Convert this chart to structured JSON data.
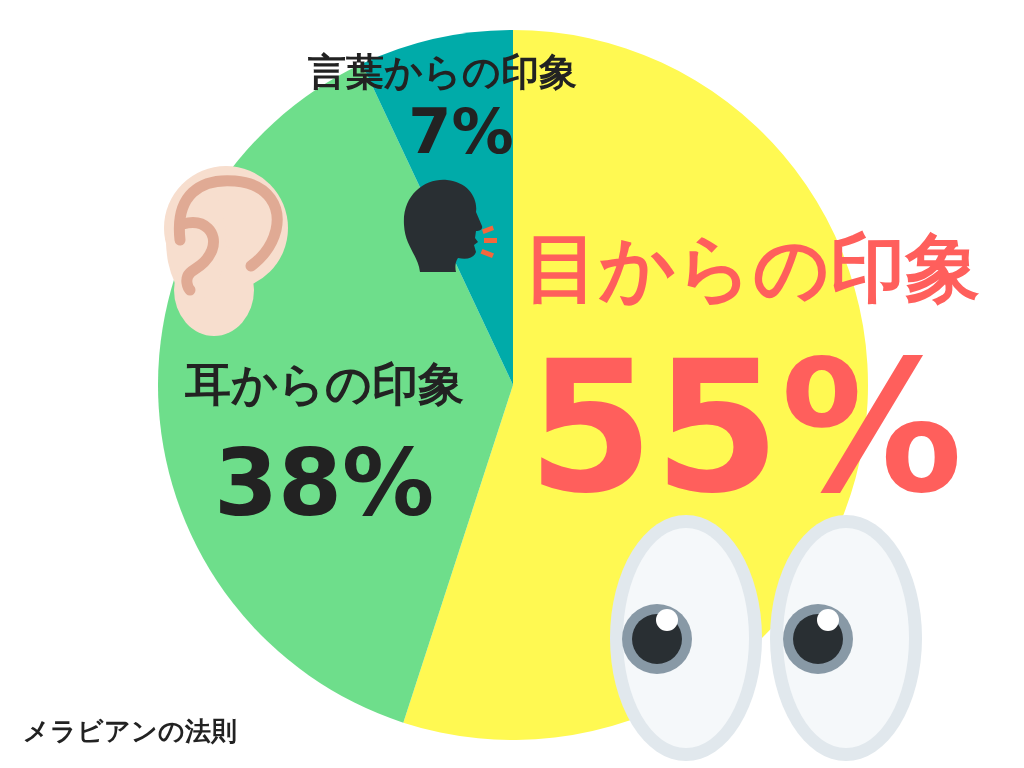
{
  "chart_data": {
    "type": "pie",
    "title": "メラビアンの法則",
    "categories": [
      "目からの印象",
      "耳からの印象",
      "言葉からの印象"
    ],
    "values": [
      55,
      38,
      7
    ],
    "colors": [
      "#fff952",
      "#6ede8b",
      "#00aba9"
    ],
    "value_labels": [
      "55%",
      "38%",
      "7%"
    ]
  }
}
